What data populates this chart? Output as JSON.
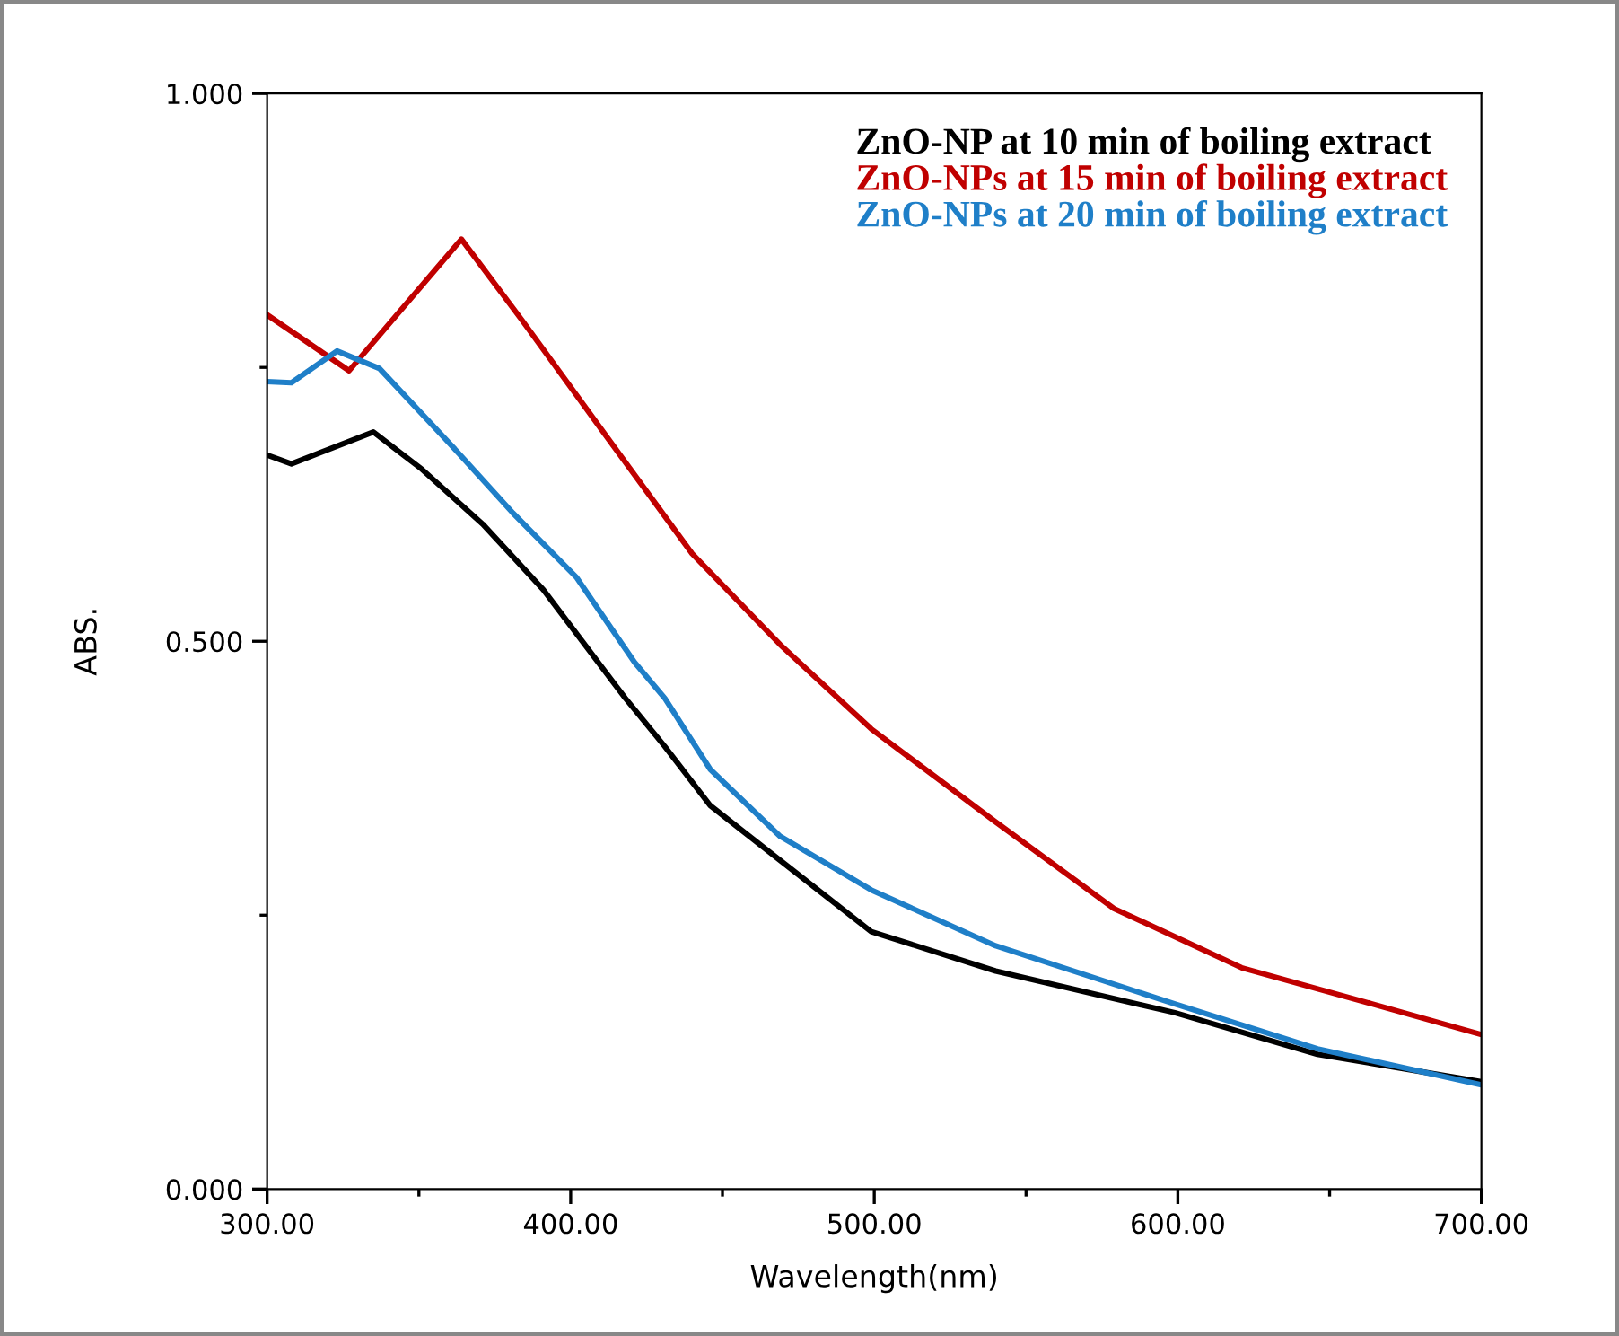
{
  "chart_data": {
    "type": "line",
    "xlabel": "Wavelength(nm)",
    "ylabel": "ABS.",
    "xlim": [
      300,
      700
    ],
    "ylim": [
      0,
      1
    ],
    "xticks": [
      {
        "value": 300,
        "label": "300.00"
      },
      {
        "value": 350,
        "label": null
      },
      {
        "value": 400,
        "label": "400.00"
      },
      {
        "value": 450,
        "label": null
      },
      {
        "value": 500,
        "label": "500.00"
      },
      {
        "value": 550,
        "label": null
      },
      {
        "value": 600,
        "label": "600.00"
      },
      {
        "value": 650,
        "label": null
      },
      {
        "value": 700,
        "label": "700.00"
      }
    ],
    "yticks": [
      {
        "value": 0,
        "label": "0.000"
      },
      {
        "value": 0.25,
        "label": null
      },
      {
        "value": 0.5,
        "label": "0.500"
      },
      {
        "value": 0.75,
        "label": null
      },
      {
        "value": 1,
        "label": "1.000"
      }
    ],
    "grid": false,
    "legend": "top right",
    "series": [
      {
        "name": "ZnO-NP at 10 min of boiling extract",
        "color": "#000000",
        "x": [
          300,
          308,
          335,
          351,
          371,
          391,
          418,
          431,
          446,
          469,
          499,
          540,
          599,
          646,
          700
        ],
        "values": [
          0.67,
          0.662,
          0.691,
          0.657,
          0.607,
          0.547,
          0.448,
          0.404,
          0.35,
          0.3,
          0.235,
          0.199,
          0.161,
          0.123,
          0.098
        ]
      },
      {
        "name": "ZnO-NPs at 15 min of boiling extract",
        "color": "#c00000",
        "x": [
          300,
          327,
          364,
          384,
          411,
          440,
          469,
          499,
          540,
          579,
          621,
          664,
          700
        ],
        "values": [
          0.798,
          0.747,
          0.867,
          0.793,
          0.69,
          0.58,
          0.497,
          0.42,
          0.335,
          0.256,
          0.202,
          0.169,
          0.141
        ]
      },
      {
        "name": "ZnO-NPs at 20 min of boiling extract",
        "color": "#1f7fc8",
        "x": [
          300,
          308,
          323,
          337,
          361,
          381,
          402,
          421,
          431,
          446,
          469,
          499,
          540,
          599,
          646,
          700
        ],
        "values": [
          0.737,
          0.736,
          0.765,
          0.749,
          0.678,
          0.617,
          0.558,
          0.481,
          0.448,
          0.383,
          0.322,
          0.273,
          0.222,
          0.169,
          0.128,
          0.095
        ]
      }
    ]
  }
}
